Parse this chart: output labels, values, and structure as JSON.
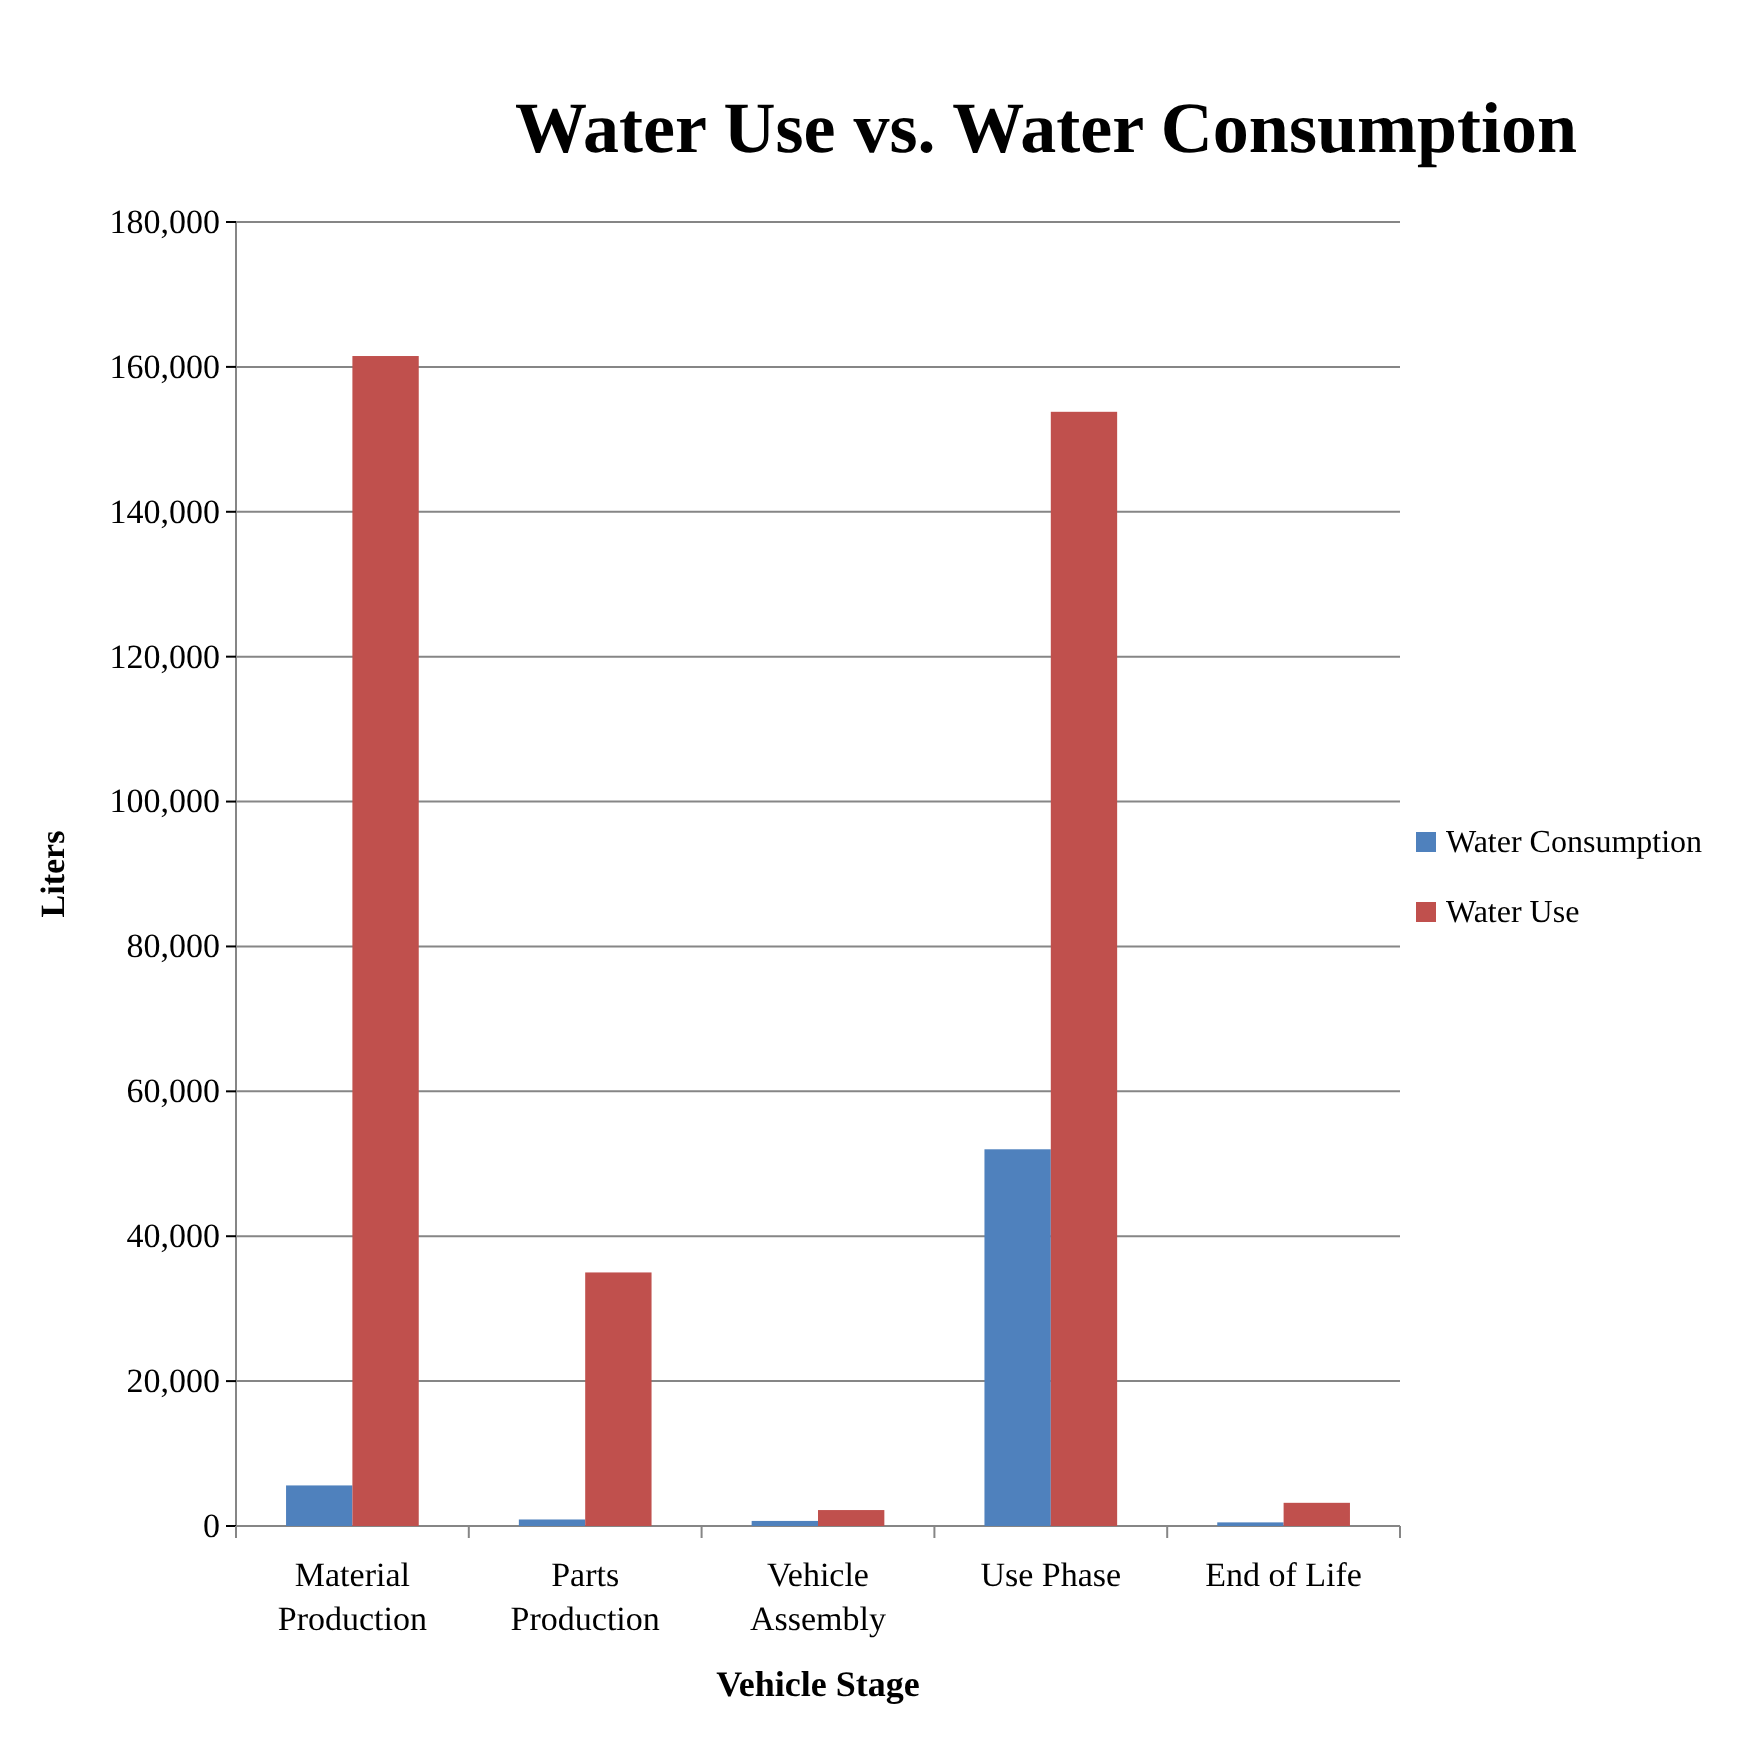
{
  "chart_data": {
    "type": "bar",
    "title": "Water Use vs. Water Consumption",
    "xlabel": "Vehicle Stage",
    "ylabel": "Liters",
    "categories": [
      "Material Production",
      "Parts Production",
      "Vehicle Assembly",
      "Use Phase",
      "End of Life"
    ],
    "series": [
      {
        "name": "Water Consumption",
        "color": "#4f81bd",
        "values": [
          5600,
          900,
          700,
          52000,
          500
        ]
      },
      {
        "name": "Water Use",
        "color": "#c0504d",
        "values": [
          161500,
          35000,
          2200,
          153800,
          3200
        ]
      }
    ],
    "ylim": [
      0,
      180000
    ],
    "yticks": [
      {
        "value": 0,
        "label": "0"
      },
      {
        "value": 20000,
        "label": "20,000"
      },
      {
        "value": 40000,
        "label": "40,000"
      },
      {
        "value": 60000,
        "label": "60,000"
      },
      {
        "value": 80000,
        "label": "80,000"
      },
      {
        "value": 100000,
        "label": "100,000"
      },
      {
        "value": 120000,
        "label": "120,000"
      },
      {
        "value": 140000,
        "label": "140,000"
      },
      {
        "value": 160000,
        "label": "160,000"
      },
      {
        "value": 180000,
        "label": "180,000"
      }
    ],
    "grid": "y",
    "legend": "right"
  }
}
